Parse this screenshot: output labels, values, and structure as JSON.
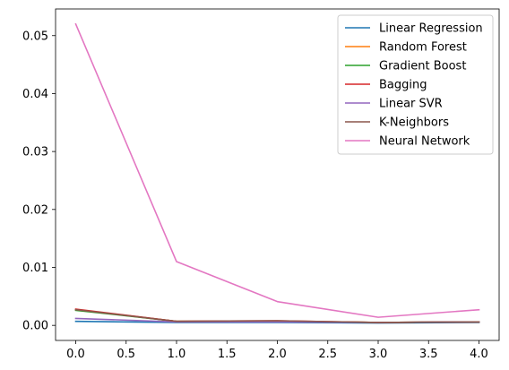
{
  "chart_data": {
    "type": "line",
    "title": "",
    "xlabel": "",
    "ylabel": "",
    "x": [
      0,
      1,
      2,
      3,
      4
    ],
    "xlim": [
      -0.2,
      4.2
    ],
    "ylim": [
      -0.0026,
      0.0546
    ],
    "xticks": [
      0.0,
      0.5,
      1.0,
      1.5,
      2.0,
      2.5,
      3.0,
      3.5,
      4.0
    ],
    "xtick_labels": [
      "0.0",
      "0.5",
      "1.0",
      "1.5",
      "2.0",
      "2.5",
      "3.0",
      "3.5",
      "4.0"
    ],
    "yticks": [
      0.0,
      0.01,
      0.02,
      0.03,
      0.04,
      0.05
    ],
    "ytick_labels": [
      "0.00",
      "0.01",
      "0.02",
      "0.03",
      "0.04",
      "0.05"
    ],
    "grid": false,
    "legend_position": "top-right",
    "series": [
      {
        "name": "Linear Regression",
        "color": "#1f77b4",
        "values": [
          0.0007,
          0.0005,
          0.0005,
          0.0004,
          0.0005
        ]
      },
      {
        "name": "Random Forest",
        "color": "#ff7f0e",
        "values": [
          0.0027,
          0.0007,
          0.0007,
          0.0005,
          0.0006
        ]
      },
      {
        "name": "Gradient Boost",
        "color": "#2ca02c",
        "values": [
          0.0026,
          0.0007,
          0.0007,
          0.0005,
          0.0006
        ]
      },
      {
        "name": "Bagging",
        "color": "#d62728",
        "values": [
          0.0028,
          0.0007,
          0.0008,
          0.0005,
          0.0006
        ]
      },
      {
        "name": "Linear SVR",
        "color": "#9467bd",
        "values": [
          0.0012,
          0.0006,
          0.0006,
          0.0005,
          0.0006
        ]
      },
      {
        "name": "K-Neighbors",
        "color": "#8c564b",
        "values": [
          0.0027,
          0.0007,
          0.0008,
          0.0005,
          0.0006
        ]
      },
      {
        "name": "Neural Network",
        "color": "#e377c2",
        "values": [
          0.052,
          0.011,
          0.0041,
          0.0014,
          0.0027
        ]
      }
    ]
  }
}
